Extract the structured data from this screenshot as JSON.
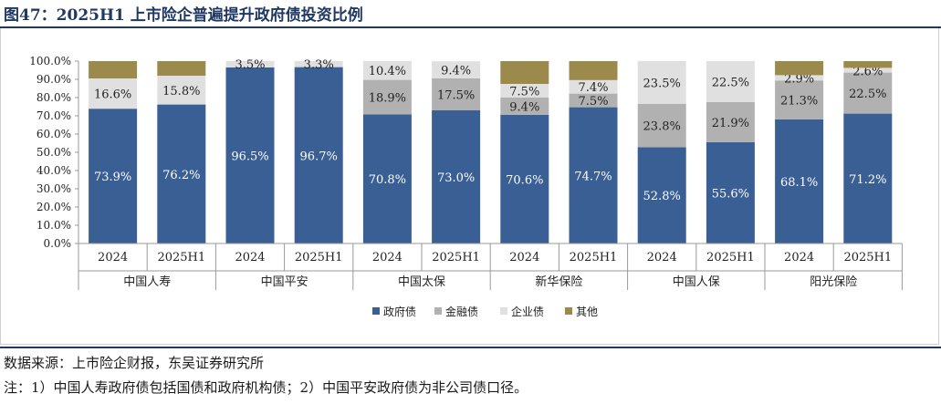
{
  "figure": {
    "title": "图47：2025H1 上市险企普遍提升政府债投资比例",
    "source": "数据来源：上市险企财报，东吴证券研究所",
    "note": "注：1）中国人寿政府债包括国债和政府机构债；2）中国平安政府债为非公司债口径。"
  },
  "chart_data": {
    "type": "bar",
    "stacked": true,
    "title": "",
    "xlabel": "",
    "ylabel": "",
    "ylim": [
      0,
      100
    ],
    "yticks": [
      "0.0%",
      "10.0%",
      "20.0%",
      "30.0%",
      "40.0%",
      "50.0%",
      "60.0%",
      "70.0%",
      "80.0%",
      "90.0%",
      "100.0%"
    ],
    "grid": false,
    "legend_position": "bottom",
    "groups": [
      "中国人寿",
      "中国平安",
      "中国太保",
      "新华保险",
      "中国人保",
      "阳光保险"
    ],
    "categories": [
      "2024",
      "2025H1",
      "2024",
      "2025H1",
      "2024",
      "2025H1",
      "2024",
      "2025H1",
      "2024",
      "2025H1",
      "2024",
      "2025H1"
    ],
    "series": [
      {
        "name": "政府债",
        "color": "#3a5f94",
        "values": [
          73.9,
          76.2,
          96.5,
          96.7,
          70.8,
          73.0,
          70.6,
          74.7,
          52.8,
          55.6,
          68.1,
          71.2
        ],
        "labels": [
          "73.9%",
          "76.2%",
          "96.5%",
          "96.7%",
          "70.8%",
          "73.0%",
          "70.6%",
          "74.7%",
          "52.8%",
          "55.6%",
          "68.1%",
          "71.2%"
        ]
      },
      {
        "name": "金融债",
        "color": "#b1b1b1",
        "values": [
          0,
          0,
          0,
          0,
          18.9,
          17.5,
          9.4,
          7.5,
          23.8,
          21.9,
          21.3,
          22.5
        ],
        "labels": [
          "",
          "",
          "",
          "",
          "18.9%",
          "17.5%",
          "9.4%",
          "7.5%",
          "23.8%",
          "21.9%",
          "21.3%",
          "22.5%"
        ]
      },
      {
        "name": "企业债",
        "color": "#e0e0e0",
        "values": [
          16.6,
          15.8,
          3.5,
          3.3,
          10.4,
          9.4,
          7.5,
          7.4,
          23.5,
          22.5,
          2.9,
          2.6
        ],
        "labels": [
          "16.6%",
          "15.8%",
          "3.5%",
          "3.3%",
          "10.4%",
          "9.4%",
          "7.5%",
          "7.4%",
          "23.5%",
          "22.5%",
          "2.9%",
          "2.6%"
        ]
      },
      {
        "name": "其他",
        "color": "#9c8a4c",
        "values": [
          9.5,
          8.0,
          0,
          0,
          0,
          0,
          12.5,
          10.4,
          0,
          0,
          7.7,
          3.7
        ],
        "labels": [
          "",
          "",
          "",
          "",
          "",
          "",
          "",
          "",
          "",
          "",
          "",
          ""
        ]
      }
    ]
  }
}
